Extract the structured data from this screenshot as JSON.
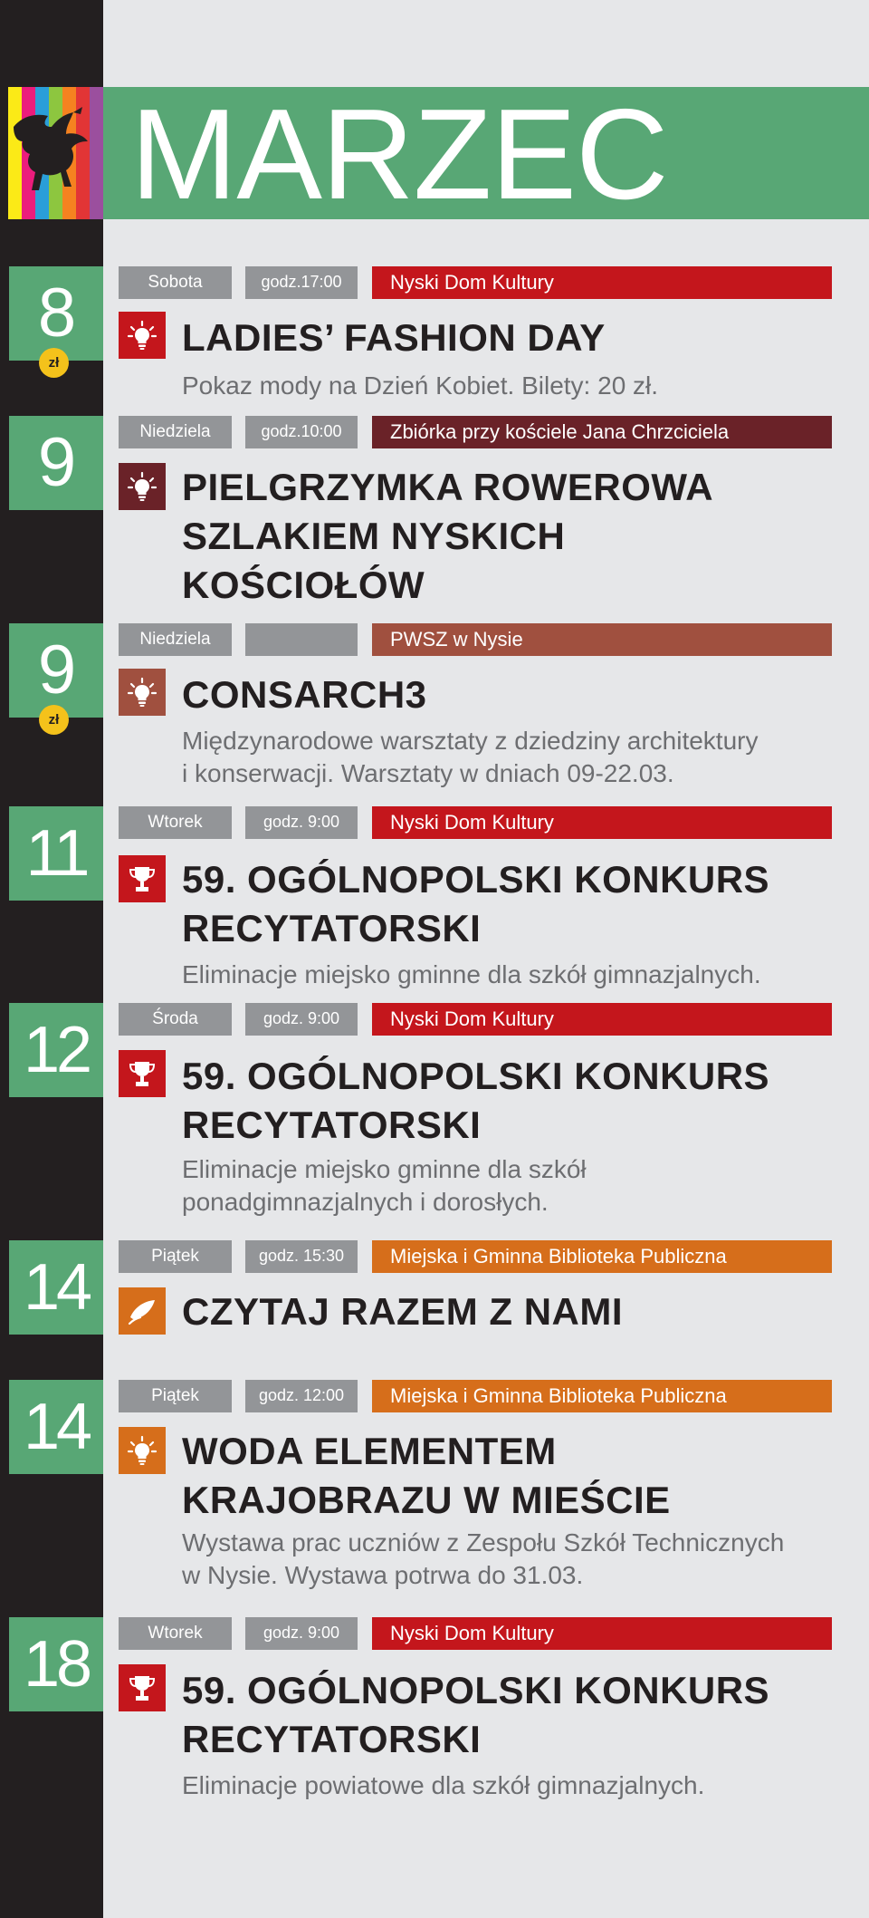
{
  "header": {
    "title": "MARZEC"
  },
  "logo": {
    "stripe_colors": [
      "#fbea17",
      "#ec1c7c",
      "#2a9ed8",
      "#8dc63f",
      "#f58220",
      "#e23536",
      "#9b4f9e"
    ]
  },
  "colors": {
    "green": "#58a775",
    "red": "#c4161c",
    "maroon": "#6a2228",
    "brick": "#a0503f",
    "orange": "#d66e1b",
    "gray": "#939598",
    "badge_yellow": "#f4c21b"
  },
  "events": [
    {
      "day": "8",
      "has_fee": true,
      "fee_label": "zł",
      "weekday": "Sobota",
      "time": "godz.17:00",
      "venue": "Nyski Dom Kultury",
      "accent": "red",
      "icon": "lightbulb-icon",
      "title": "LADIES’ FASHION DAY",
      "description": "Pokaz mody na Dzień Kobiet. Bilety: 20 zł."
    },
    {
      "day": "9",
      "has_fee": false,
      "weekday": "Niedziela",
      "time": "godz.10:00",
      "venue": "Zbiórka przy kościele Jana Chrzciciela",
      "accent": "maroon",
      "icon": "lightbulb-icon",
      "title": "PIELGRZYMKA ROWEROWA SZLAKIEM NYSKICH KOŚCIOŁÓW",
      "description": ""
    },
    {
      "day": "9",
      "has_fee": true,
      "fee_label": "zł",
      "weekday": "Niedziela",
      "time": "",
      "venue": "PWSZ w Nysie",
      "accent": "brick",
      "icon": "lightbulb-icon",
      "title": "CONSARCH3",
      "description": "Międzynarodowe warsztaty z dziedziny architektury i konserwacji. Warsztaty w dniach 09-22.03."
    },
    {
      "day": "11",
      "has_fee": false,
      "weekday": "Wtorek",
      "time": "godz. 9:00",
      "venue": "Nyski Dom Kultury",
      "accent": "red",
      "icon": "trophy-icon",
      "title": "59. OGÓLNOPOLSKI KONKURS RECYTATORSKI",
      "description": "Eliminacje miejsko gminne dla szkół gimnazjalnych."
    },
    {
      "day": "12",
      "has_fee": false,
      "weekday": "Środa",
      "time": "godz. 9:00",
      "venue": "Nyski Dom Kultury",
      "accent": "red",
      "icon": "trophy-icon",
      "title": "59. OGÓLNOPOLSKI KONKURS RECYTATORSKI",
      "description": "Eliminacje miejsko gminne dla szkół ponadgimnazjalnych i dorosłych."
    },
    {
      "day": "14",
      "has_fee": false,
      "weekday": "Piątek",
      "time": "godz. 15:30",
      "venue": "Miejska i Gminna Biblioteka Publiczna",
      "accent": "orange",
      "icon": "quill-icon",
      "title": "CZYTAJ RAZEM Z NAMI",
      "description": ""
    },
    {
      "day": "14",
      "has_fee": false,
      "weekday": "Piątek",
      "time": "godz. 12:00",
      "venue": "Miejska i Gminna Biblioteka Publiczna",
      "accent": "orange",
      "icon": "lightbulb-icon",
      "title": "WODA ELEMENTEM KRAJOBRAZU W MIEŚCIE",
      "description": "Wystawa prac uczniów z Zespołu Szkół Technicznych w Nysie. Wystawa potrwa do 31.03."
    },
    {
      "day": "18",
      "has_fee": false,
      "weekday": "Wtorek",
      "time": "godz. 9:00",
      "venue": "Nyski Dom Kultury",
      "accent": "red",
      "icon": "trophy-icon",
      "title": "59. OGÓLNOPOLSKI KONKURS RECYTATORSKI",
      "description": "Eliminacje powiatowe dla szkół gimnazjalnych."
    }
  ]
}
